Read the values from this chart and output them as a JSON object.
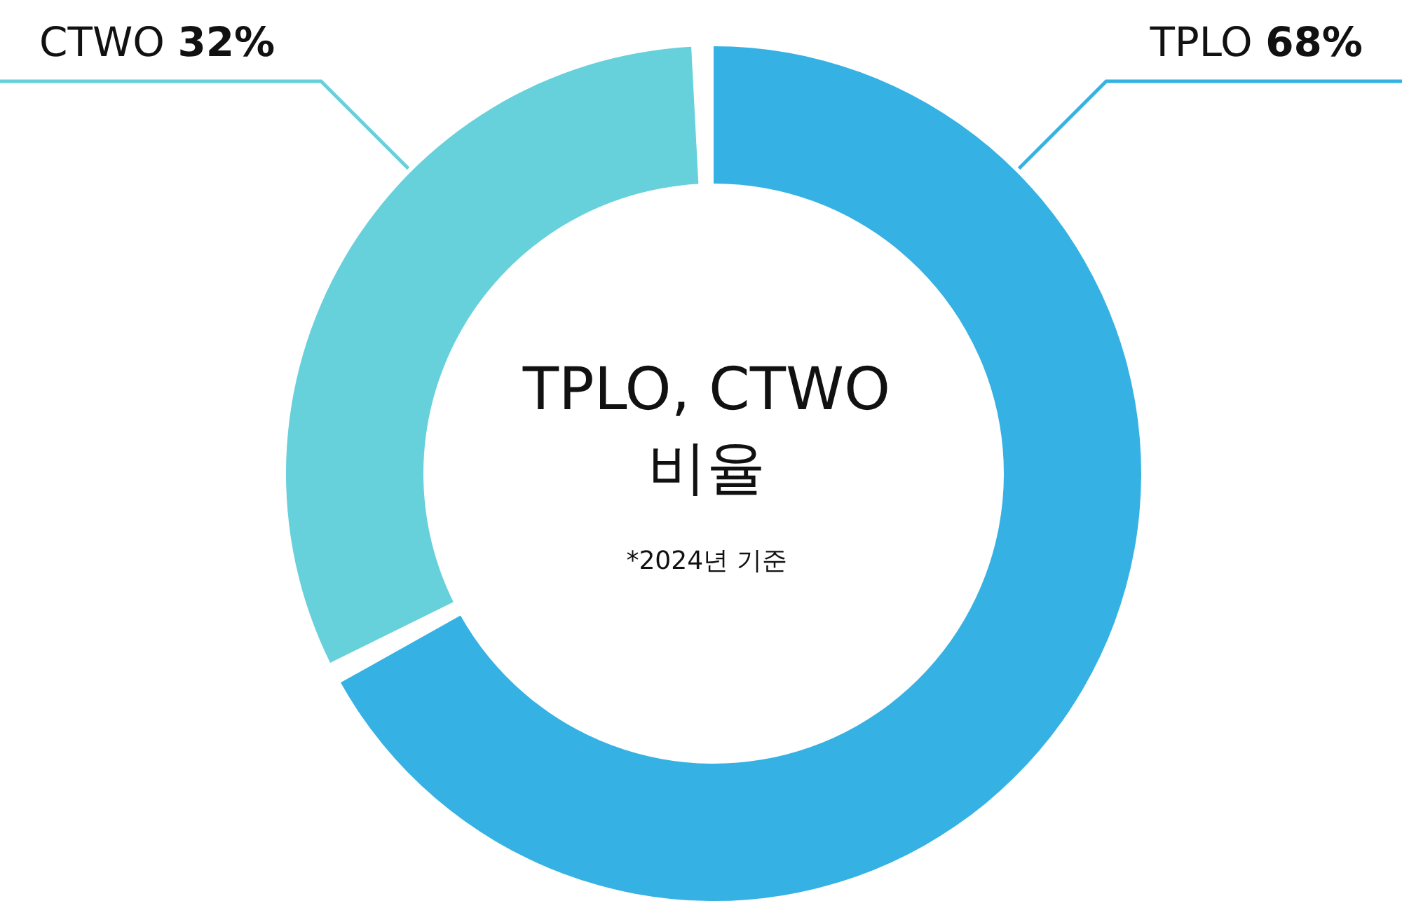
{
  "chart_data": {
    "type": "donut",
    "title": "TPLO, CTWO 비율",
    "subtitle": "*2024년 기준",
    "categories": [
      "TPLO",
      "CTWO"
    ],
    "values": [
      68,
      32
    ],
    "value_labels": [
      "68%",
      "32%"
    ],
    "colors": [
      "#35b2e3",
      "#66d0db"
    ]
  }
}
